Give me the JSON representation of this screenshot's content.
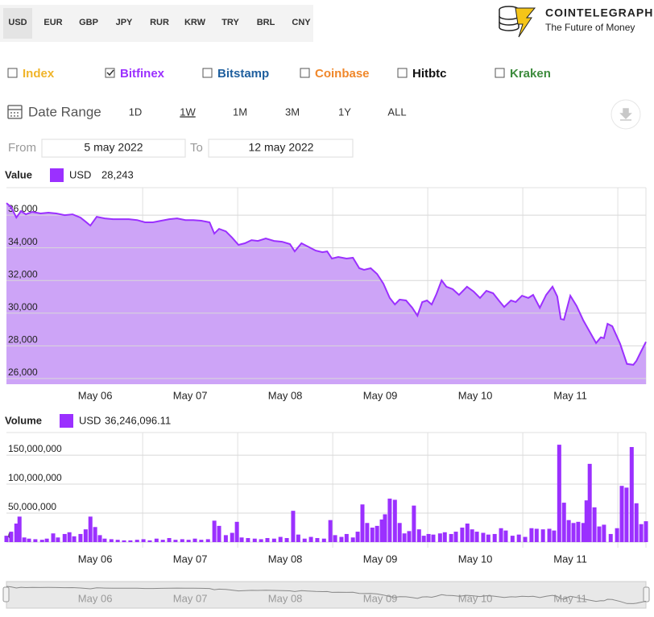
{
  "currencies": {
    "items": [
      "USD",
      "EUR",
      "GBP",
      "JPY",
      "RUR",
      "KRW",
      "TRY",
      "BRL",
      "CNY"
    ],
    "selected": 0
  },
  "brand": {
    "name": "COINTELEGRAPH",
    "tagline": "The Future of Money"
  },
  "exchanges": [
    {
      "label": "Index",
      "color": "#f0b429",
      "checked": false
    },
    {
      "label": "Bitfinex",
      "color": "#9b30ff",
      "checked": true
    },
    {
      "label": "Bitstamp",
      "color": "#1f5f9e",
      "checked": false
    },
    {
      "label": "Coinbase",
      "color": "#f0872a",
      "checked": false
    },
    {
      "label": "Hitbtc",
      "color": "#111111",
      "checked": false
    },
    {
      "label": "Kraken",
      "color": "#3d8b3d",
      "checked": false
    }
  ],
  "range": {
    "label": "Date Range",
    "buttons": [
      "1D",
      "1W",
      "1M",
      "3M",
      "1Y",
      "ALL"
    ],
    "selected": 1
  },
  "dates": {
    "from_label": "From",
    "from": "5 may 2022",
    "to_label": "To",
    "to": "12 may 2022"
  },
  "chart_data": [
    {
      "type": "area",
      "title": "Value",
      "legend_value": "28,243",
      "x": [
        -22.4,
        -21.2,
        -19.9,
        -18.7,
        -17.5,
        -15.9,
        -13.8,
        -11.8,
        -9.8,
        -7.7,
        -5.7,
        -3.7,
        -2.4,
        -1.2,
        0.4,
        2.4,
        4.5,
        6.5,
        8.5,
        10.6,
        12.6,
        14.6,
        16.7,
        18.7,
        20.7,
        22.8,
        24.8,
        26.8,
        28.9,
        30.1,
        31.3,
        33.0,
        34.6,
        36.2,
        37.8,
        39.5,
        41.1,
        43.1,
        45.2,
        47.2,
        49.2,
        50.4,
        52.1,
        53.7,
        55.7,
        57.4,
        58.6,
        59.8,
        61.4,
        63.5,
        65.1,
        66.7,
        67.9,
        69.6,
        71.2,
        72.8,
        74.4,
        75.7,
        76.9,
        78.5,
        80.1,
        81.4,
        82.6,
        83.8,
        85.0,
        86.2,
        87.5,
        88.7,
        90.3,
        91.9,
        93.9,
        95.6,
        97.2,
        98.8,
        100.5,
        102.1,
        103.3,
        105.0,
        106.2,
        107.8,
        109.4,
        110.6,
        112.3,
        113.9,
        115.5,
        116.7,
        117.6,
        118.4,
        120.0,
        121.6,
        123.3,
        124.9,
        126.5,
        127.7,
        128.5,
        129.4,
        130.6,
        132.6,
        134.3,
        135.9,
        136.7,
        137.9,
        139.1
      ],
      "series": [
        {
          "name": "USD",
          "color": "#9b30ff",
          "fill_color": "#cda4f7",
          "values": [
            36740,
            36490,
            35850,
            36250,
            36050,
            36200,
            36100,
            36150,
            36100,
            36000,
            36050,
            35850,
            35600,
            35360,
            35900,
            35800,
            35750,
            35750,
            35750,
            35700,
            35560,
            35560,
            35660,
            35750,
            35800,
            35700,
            35700,
            35660,
            35560,
            34870,
            35160,
            35010,
            34620,
            34180,
            34280,
            34470,
            34420,
            34570,
            34420,
            34370,
            34230,
            33780,
            34280,
            34080,
            33830,
            33730,
            33780,
            33340,
            33440,
            33340,
            33390,
            32750,
            32650,
            32750,
            32400,
            31810,
            30930,
            30530,
            30830,
            30780,
            30330,
            29840,
            30680,
            30780,
            30530,
            31170,
            32010,
            31620,
            31470,
            31120,
            31620,
            31320,
            30930,
            31370,
            31220,
            30730,
            30380,
            30780,
            30680,
            31070,
            30930,
            31120,
            30330,
            31120,
            31620,
            31020,
            29650,
            29600,
            31070,
            30430,
            29550,
            28860,
            28170,
            28520,
            28470,
            29350,
            29200,
            28120,
            26890,
            26840,
            27080,
            27670,
            28243
          ]
        }
      ],
      "xlim": [
        -22.4,
        139.1
      ],
      "xticks": [
        {
          "value": 0,
          "label": "May 06"
        },
        {
          "value": 24,
          "label": "May 07"
        },
        {
          "value": 48,
          "label": "May 08"
        },
        {
          "value": 72,
          "label": "May 09"
        },
        {
          "value": 96,
          "label": "May 10"
        },
        {
          "value": 120,
          "label": "May 11"
        }
      ],
      "ylim": [
        25650,
        37680
      ],
      "yticks": [
        {
          "value": 26000,
          "label": "26,000"
        },
        {
          "value": 28000,
          "label": "28,000"
        },
        {
          "value": 30000,
          "label": "30,000"
        },
        {
          "value": 32000,
          "label": "32,000"
        },
        {
          "value": 34000,
          "label": "34,000"
        },
        {
          "value": 36000,
          "label": "36,000"
        }
      ],
      "grid": true
    },
    {
      "type": "bar",
      "title": "Volume",
      "legend_value": "36,246,096.11",
      "x": [
        -22.4,
        -21.2,
        -19.9,
        -19.1,
        -17.9,
        -16.7,
        -15.1,
        -13.4,
        -12.2,
        -10.6,
        -9.4,
        -7.7,
        -6.5,
        -5.3,
        -3.7,
        -2.4,
        -1.2,
        0,
        1.2,
        2.4,
        4.1,
        5.7,
        7.3,
        8.9,
        10.6,
        12.2,
        13.8,
        15.5,
        17.1,
        18.7,
        20.3,
        22.0,
        23.6,
        25.2,
        26.8,
        28.5,
        30.1,
        31.3,
        33.0,
        34.6,
        35.8,
        37.0,
        38.6,
        40.3,
        41.9,
        43.5,
        45.2,
        46.8,
        48.4,
        50.0,
        51.3,
        52.9,
        54.5,
        56.1,
        57.8,
        59.4,
        60.6,
        62.2,
        63.5,
        65.1,
        66.3,
        67.5,
        68.7,
        70.0,
        71.2,
        72.4,
        73.2,
        74.4,
        75.7,
        76.9,
        78.1,
        79.3,
        80.5,
        81.8,
        83.0,
        84.2,
        85.4,
        87.1,
        88.3,
        89.9,
        91.1,
        92.7,
        94.0,
        95.2,
        96.4,
        98.0,
        99.3,
        100.9,
        102.5,
        103.7,
        105.4,
        107.0,
        108.6,
        110.2,
        111.5,
        113.1,
        114.7,
        115.9,
        117.2,
        118.4,
        119.6,
        120.8,
        122.0,
        123.3,
        124.1,
        124.9,
        126.1,
        127.3,
        128.5,
        130.2,
        131.8,
        133.0,
        134.2,
        135.5,
        136.7,
        137.9,
        139.1
      ],
      "series": [
        {
          "name": "USD",
          "color": "#9b30ff",
          "values": [
            11000000,
            18000000,
            32000000,
            44000000,
            8000000,
            6000000,
            5000000,
            4000000,
            6000000,
            15000000,
            8000000,
            14000000,
            17000000,
            10000000,
            14000000,
            22000000,
            44000000,
            26000000,
            12000000,
            6000000,
            5000000,
            4000000,
            3000000,
            3000000,
            4000000,
            5000000,
            3000000,
            6000000,
            4000000,
            7000000,
            4000000,
            5000000,
            4000000,
            6000000,
            4000000,
            5000000,
            37000000,
            28000000,
            12000000,
            16000000,
            35000000,
            8000000,
            7000000,
            6000000,
            5000000,
            7000000,
            6000000,
            9000000,
            7000000,
            54000000,
            13000000,
            6000000,
            9000000,
            7000000,
            6000000,
            38000000,
            12000000,
            9000000,
            14000000,
            8000000,
            18000000,
            65000000,
            33000000,
            25000000,
            28000000,
            39000000,
            48000000,
            75000000,
            73000000,
            33000000,
            15000000,
            19000000,
            63000000,
            22000000,
            11000000,
            14000000,
            13000000,
            15000000,
            17000000,
            14000000,
            18000000,
            25000000,
            32000000,
            22000000,
            18000000,
            16000000,
            13000000,
            14000000,
            24000000,
            20000000,
            11000000,
            13000000,
            9000000,
            24000000,
            23000000,
            22000000,
            23000000,
            20000000,
            168000000,
            68000000,
            38000000,
            33000000,
            35000000,
            33000000,
            72000000,
            135000000,
            60000000,
            27000000,
            30000000,
            14000000,
            24000000,
            97000000,
            94000000,
            164000000,
            67000000,
            31000000,
            36000000
          ]
        }
      ],
      "xlim": [
        -22.4,
        139.1
      ],
      "xticks": [
        {
          "value": 0,
          "label": "May 06"
        },
        {
          "value": 24,
          "label": "May 07"
        },
        {
          "value": 48,
          "label": "May 08"
        },
        {
          "value": 72,
          "label": "May 09"
        },
        {
          "value": 96,
          "label": "May 10"
        },
        {
          "value": 120,
          "label": "May 11"
        }
      ],
      "ylim": [
        -9700000,
        189000000
      ],
      "yticks": [
        0,
        {
          "value": 50000000,
          "label": "50,000,000"
        },
        {
          "value": 100000000,
          "label": "100,000,000"
        },
        {
          "value": 150000000,
          "label": "150,000,000"
        }
      ],
      "grid": true
    }
  ]
}
